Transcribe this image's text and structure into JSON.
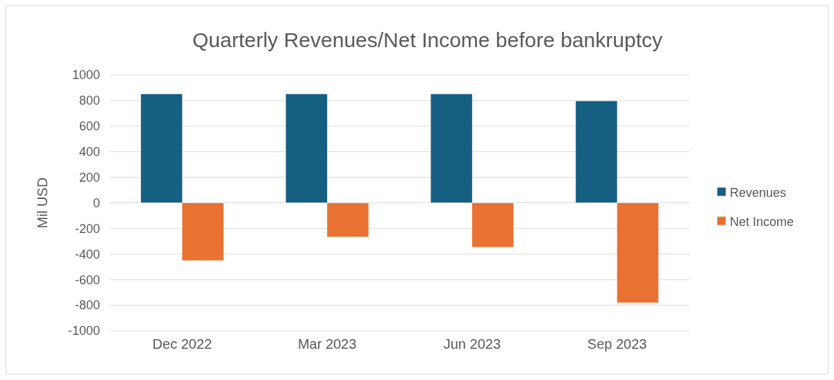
{
  "chart_data": {
    "type": "bar",
    "title": "Quarterly Revenues/Net Income before bankruptcy",
    "ylabel": "Mil USD",
    "categories": [
      "Dec 2022",
      "Mar 2023",
      "Jun 2023",
      "Sep 2023"
    ],
    "series": [
      {
        "name": "Revenues",
        "color": "#156082",
        "values": [
          850,
          850,
          850,
          795
        ]
      },
      {
        "name": "Net Income",
        "color": "#e97132",
        "values": [
          -450,
          -265,
          -345,
          -780
        ]
      }
    ],
    "ylim": [
      -1000,
      1000
    ],
    "yticks": [
      -1000,
      -800,
      -600,
      -400,
      -200,
      0,
      200,
      400,
      600,
      800,
      1000
    ],
    "grid": "y",
    "legend": "right"
  }
}
